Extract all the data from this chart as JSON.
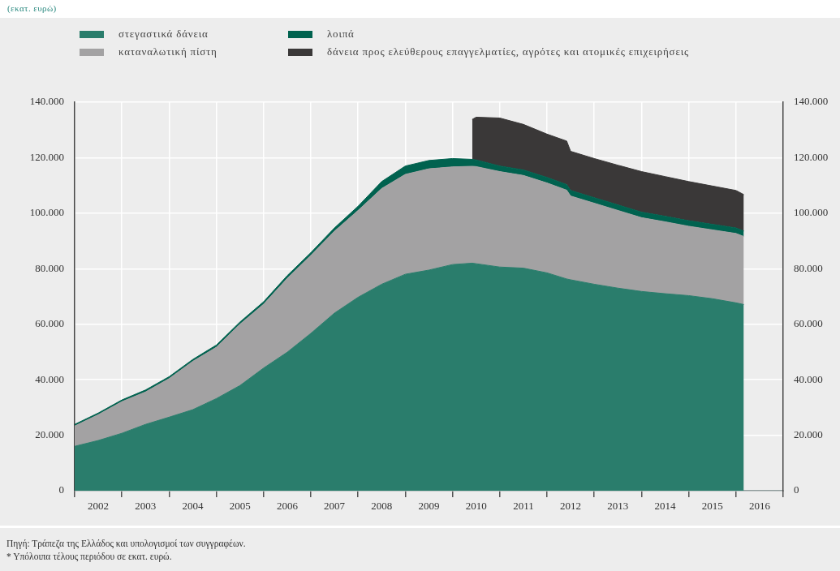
{
  "chart_data": {
    "type": "area",
    "stacked": true,
    "subtitle": "(εκατ. ευρώ)",
    "x": [
      "2002-01",
      "2002-07",
      "2003-01",
      "2003-07",
      "2004-01",
      "2004-07",
      "2005-01",
      "2005-07",
      "2006-01",
      "2006-07",
      "2007-01",
      "2007-07",
      "2008-01",
      "2008-07",
      "2009-01",
      "2009-07",
      "2010-01",
      "2010-06",
      "2010-07",
      "2011-01",
      "2011-07",
      "2012-01",
      "2012-06",
      "2012-07",
      "2013-01",
      "2013-07",
      "2014-01",
      "2014-07",
      "2015-01",
      "2015-07",
      "2016-01",
      "2016-03"
    ],
    "series": [
      {
        "name": "στεγαστικά δάνεια",
        "color": "#2a7d6c",
        "values": [
          16000,
          18100,
          20700,
          23900,
          26500,
          29200,
          33200,
          37900,
          44200,
          49900,
          56700,
          64000,
          69700,
          74400,
          78000,
          79500,
          81500,
          82000,
          81800,
          80600,
          80200,
          78500,
          76300,
          76000,
          74400,
          73000,
          71800,
          71000,
          70300,
          69200,
          67700,
          67100
        ]
      },
      {
        "name": "καταναλωτική πίστη",
        "color": "#a3a2a3",
        "values": [
          7300,
          9300,
          11400,
          11700,
          13900,
          17400,
          18500,
          22100,
          23000,
          26600,
          28100,
          29500,
          31300,
          34500,
          36000,
          36500,
          35200,
          34900,
          35000,
          34400,
          33400,
          32400,
          32000,
          30200,
          29200,
          28000,
          26600,
          25900,
          25000,
          24800,
          25000,
          24500
        ]
      },
      {
        "name": "λοιπά",
        "color": "#00624f",
        "values": [
          600,
          600,
          600,
          700,
          700,
          700,
          800,
          800,
          900,
          1000,
          1000,
          1200,
          1500,
          2500,
          3000,
          3000,
          3000,
          2500,
          2400,
          2000,
          2000,
          2000,
          2000,
          2000,
          2000,
          2000,
          2000,
          2000,
          2000,
          2000,
          2000,
          2000
        ]
      },
      {
        "name": "δάνεια προς ελεύθερους επαγγελματίες, αγρότες και ατομικές επιχειρήσεις",
        "color": "#3a3838",
        "values": [
          null,
          null,
          null,
          null,
          null,
          null,
          null,
          null,
          null,
          null,
          null,
          null,
          null,
          null,
          null,
          null,
          null,
          14400,
          15400,
          17300,
          16400,
          15600,
          15700,
          14100,
          14100,
          14300,
          14600,
          14300,
          14100,
          13800,
          13500,
          13100
        ]
      }
    ],
    "xlim": [
      "2002-01",
      "2017-01"
    ],
    "xticks": [
      {
        "value": "2002-01",
        "label": null
      },
      {
        "value": "2002-07",
        "label": "2002"
      },
      {
        "value": "2003-01",
        "label": null
      },
      {
        "value": "2003-07",
        "label": "2003"
      },
      {
        "value": "2004-01",
        "label": null
      },
      {
        "value": "2004-07",
        "label": "2004"
      },
      {
        "value": "2005-01",
        "label": null
      },
      {
        "value": "2005-07",
        "label": "2005"
      },
      {
        "value": "2006-01",
        "label": null
      },
      {
        "value": "2006-07",
        "label": "2006"
      },
      {
        "value": "2007-01",
        "label": null
      },
      {
        "value": "2007-07",
        "label": "2007"
      },
      {
        "value": "2008-01",
        "label": null
      },
      {
        "value": "2008-07",
        "label": "2008"
      },
      {
        "value": "2009-01",
        "label": null
      },
      {
        "value": "2009-07",
        "label": "2009"
      },
      {
        "value": "2010-01",
        "label": null
      },
      {
        "value": "2010-07",
        "label": "2010"
      },
      {
        "value": "2011-01",
        "label": null
      },
      {
        "value": "2011-07",
        "label": "2011"
      },
      {
        "value": "2012-01",
        "label": null
      },
      {
        "value": "2012-07",
        "label": "2012"
      },
      {
        "value": "2013-01",
        "label": null
      },
      {
        "value": "2013-07",
        "label": "2013"
      },
      {
        "value": "2014-01",
        "label": null
      },
      {
        "value": "2014-07",
        "label": "2014"
      },
      {
        "value": "2015-01",
        "label": null
      },
      {
        "value": "2015-07",
        "label": "2015"
      },
      {
        "value": "2016-01",
        "label": null
      },
      {
        "value": "2016-07",
        "label": "2016"
      },
      {
        "value": "2017-01",
        "label": null
      }
    ],
    "ylim": [
      0,
      140000
    ],
    "yticks": [
      0,
      {
        "value": 20000,
        "label": "20.000"
      },
      {
        "value": 40000,
        "label": "40.000"
      },
      {
        "value": 60000,
        "label": "60.000"
      },
      {
        "value": 80000,
        "label": "80.000"
      },
      {
        "value": 100000,
        "label": "100.000"
      },
      {
        "value": 120000,
        "label": "120.000"
      },
      {
        "value": 140000,
        "label": "140.000"
      }
    ],
    "y2lim": [
      0,
      140000
    ],
    "y2ticks": [
      0,
      {
        "value": 20000,
        "label": "20.000"
      },
      {
        "value": 40000,
        "label": "40.000"
      },
      {
        "value": 60000,
        "label": "60.000"
      },
      {
        "value": 80000,
        "label": "80.000"
      },
      {
        "value": 100000,
        "label": "100.000"
      },
      {
        "value": 120000,
        "label": "120.000"
      },
      {
        "value": 140000,
        "label": "140.000"
      }
    ],
    "grid": true,
    "legend": "top",
    "annotations": [
      "Πηγή: Τράπεζα της Ελλάδος και υπολογισμοί των συγγραφέων.",
      "* Υπόλοιπα τέλους περιόδου σε εκατ. ευρώ."
    ]
  }
}
